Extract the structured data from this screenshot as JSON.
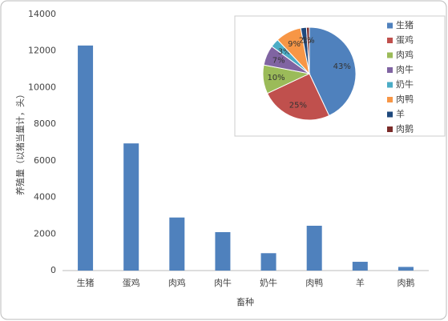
{
  "chart_data": [
    {
      "type": "bar",
      "categories": [
        "生猪",
        "蛋鸡",
        "肉鸡",
        "肉牛",
        "奶牛",
        "肉鸭",
        "羊",
        "肉鹅"
      ],
      "values": [
        12300,
        6950,
        2900,
        2100,
        950,
        2450,
        480,
        200
      ],
      "color": "#4f81bd",
      "ylim": [
        0,
        14000
      ],
      "yticks": [
        0,
        2000,
        4000,
        6000,
        8000,
        10000,
        12000,
        14000
      ],
      "xlabel": "畜种",
      "ylabel": "养殖量（以猪当量计，头）",
      "grid": false
    },
    {
      "type": "pie",
      "categories": [
        "生猪",
        "蛋鸡",
        "肉鸡",
        "肉牛",
        "奶牛",
        "肉鸭",
        "羊",
        "肉鹅"
      ],
      "values": [
        43,
        25,
        10,
        7,
        3,
        9,
        2,
        1
      ],
      "value_labels": [
        "43%",
        "25%",
        "10%",
        "7%",
        "3%",
        "9%",
        "2%",
        "1%"
      ],
      "colors": [
        "#4f81bd",
        "#c0504d",
        "#9bbb59",
        "#8064a2",
        "#4bacc6",
        "#f79646",
        "#1f497d",
        "#7b2c2a"
      ],
      "legend": "right"
    }
  ]
}
